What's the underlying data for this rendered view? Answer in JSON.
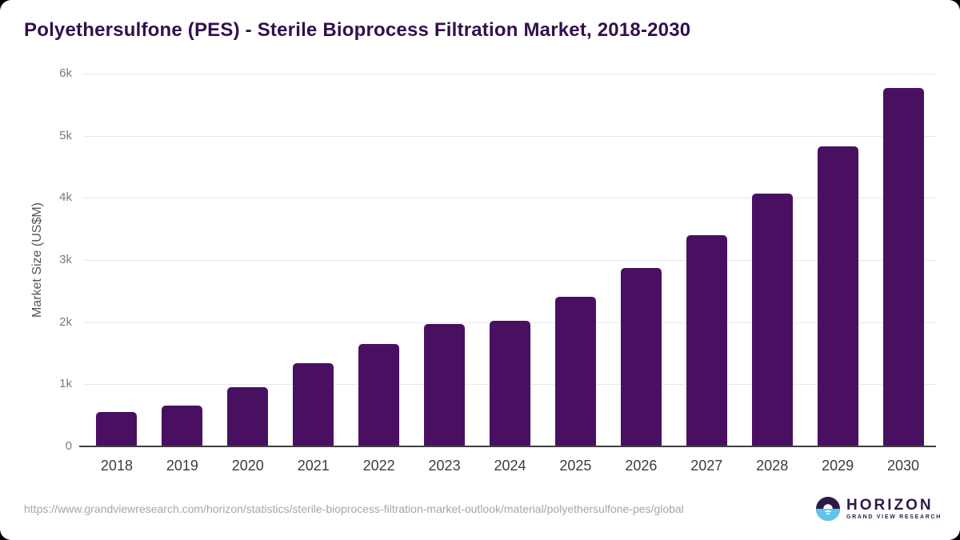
{
  "chart_data": {
    "type": "bar",
    "title": "Polyethersulfone (PES) - Sterile Bioprocess Filtration Market, 2018-2030",
    "xlabel": "",
    "ylabel": "Market Size (US$M)",
    "categories": [
      "2018",
      "2019",
      "2020",
      "2021",
      "2022",
      "2023",
      "2024",
      "2025",
      "2026",
      "2027",
      "2028",
      "2029",
      "2030"
    ],
    "values": [
      535,
      640,
      935,
      1330,
      1640,
      1960,
      2010,
      2390,
      2860,
      3390,
      4050,
      4820,
      5750
    ],
    "ylim": [
      0,
      6000
    ],
    "yticks": [
      {
        "value": 0,
        "label": "0"
      },
      {
        "value": 1000,
        "label": "1k"
      },
      {
        "value": 2000,
        "label": "2k"
      },
      {
        "value": 3000,
        "label": "3k"
      },
      {
        "value": 4000,
        "label": "4k"
      },
      {
        "value": 5000,
        "label": "5k"
      },
      {
        "value": 6000,
        "label": "6k"
      }
    ],
    "grid": true,
    "legend": false,
    "bar_color": "#491061"
  },
  "colors": {
    "title": "#33104d",
    "gridline": "#e8e8e8",
    "axis_line": "#3f3f3f",
    "logo_purple": "#2e1a47",
    "logo_blue": "#5ec5ec"
  },
  "footer": {
    "source_url": "https://www.grandviewresearch.com/horizon/statistics/sterile-bioprocess-filtration-market-outlook/material/polyethersulfone-pes/global",
    "logo": {
      "brand": "HORIZON",
      "subtitle": "GRAND VIEW RESEARCH"
    }
  }
}
